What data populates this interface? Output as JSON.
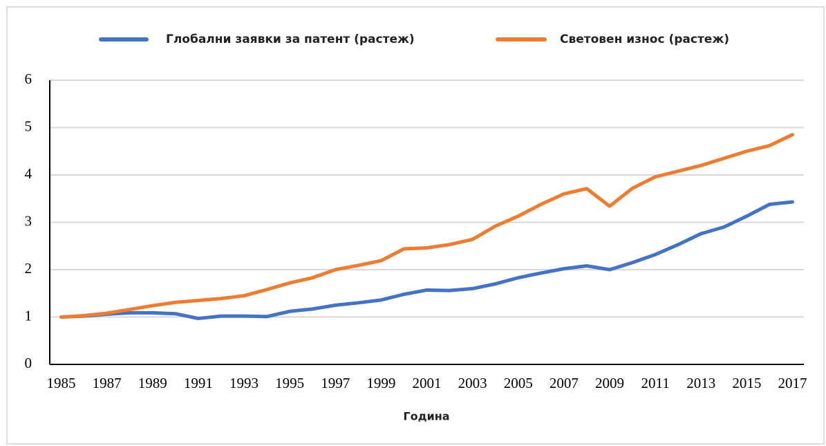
{
  "chart_data": {
    "type": "line",
    "x_label": "Година",
    "x": [
      1985,
      1986,
      1987,
      1988,
      1989,
      1990,
      1991,
      1992,
      1993,
      1994,
      1995,
      1996,
      1997,
      1998,
      1999,
      2000,
      2001,
      2002,
      2003,
      2004,
      2005,
      2006,
      2007,
      2008,
      2009,
      2010,
      2011,
      2012,
      2013,
      2014,
      2015,
      2016,
      2017
    ],
    "series": [
      {
        "name": "Глобални заявки за патент (растеж)",
        "color": "#4472c4",
        "values": [
          1.0,
          1.02,
          1.06,
          1.09,
          1.09,
          1.07,
          0.97,
          1.02,
          1.02,
          1.01,
          1.12,
          1.17,
          1.25,
          1.3,
          1.36,
          1.48,
          1.57,
          1.56,
          1.6,
          1.7,
          1.83,
          1.93,
          2.02,
          2.08,
          2.0,
          2.15,
          2.32,
          2.53,
          2.76,
          2.9,
          3.13,
          3.38,
          3.43
        ]
      },
      {
        "name": "Световен износ (растеж)",
        "color": "#ed7d31",
        "values": [
          1.0,
          1.03,
          1.08,
          1.16,
          1.24,
          1.31,
          1.35,
          1.39,
          1.45,
          1.58,
          1.72,
          1.83,
          2.0,
          2.09,
          2.19,
          2.44,
          2.46,
          2.53,
          2.64,
          2.92,
          3.13,
          3.38,
          3.6,
          3.71,
          3.34,
          3.72,
          3.96,
          4.08,
          4.2,
          4.35,
          4.5,
          4.62,
          4.85
        ]
      }
    ],
    "xlim": [
      1984.5,
      2017.5
    ],
    "xticks": [
      1985,
      1987,
      1989,
      1991,
      1993,
      1995,
      1997,
      1999,
      2001,
      2003,
      2005,
      2007,
      2009,
      2011,
      2013,
      2015,
      2017
    ],
    "ylim": [
      0,
      6
    ],
    "yticks": [
      0,
      1,
      2,
      3,
      4,
      5,
      6
    ],
    "grid": true,
    "legend": "top"
  }
}
